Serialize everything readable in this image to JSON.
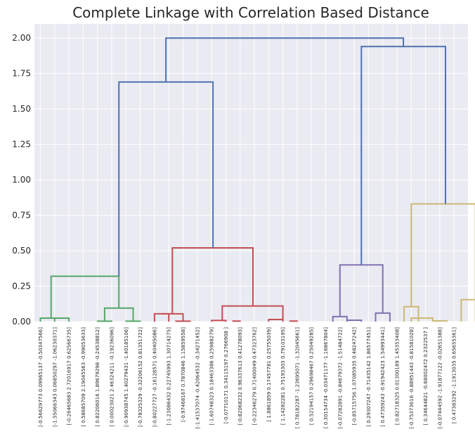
{
  "chart_data": {
    "type": "dendrogram",
    "title": "Complete Linkage with Correlation Based Distance",
    "xlabel": "",
    "ylabel": "",
    "ylim": [
      0,
      2.1
    ],
    "y_ticks": [
      "0.00",
      "0.25",
      "0.50",
      "0.75",
      "1.00",
      "1.25",
      "1.50",
      "1.75",
      "2.00"
    ],
    "grid": true,
    "leaves": [
      "[-0.56629773  0.09965137 -0.50347566]",
      "[-1.55066343  0.06850297 -1.06230371]",
      "[-0.26465683  2.72016917  0.62566735]",
      "[ 0.58685709  2.19045563 -0.99053633]",
      "[ 0.82206016  1.89679298 -0.24538812]",
      "[ 0.00023021  2.46324211 -0.19236096]",
      "[-0.90938745  1.40279431 -1.40185106]",
      "[-0.78325329 -0.32206152  0.81351722]",
      "[-0.80227727 -0.16128571  0.40405086]",
      "[-1.23086432  0.22745993  1.30714275]",
      "[-0.97468167  0.7870846   1.15859558]",
      "[-1.41537074 -0.42064532 -0.34271452]",
      "[-1.60748323  0.18463386  0.25988279]",
      "[-0.07710171  0.34115197  0.2766908 ]",
      "[-0.82068232  0.96337613  0.41278093]",
      "[-0.22346279  0.71400049  0.47323762]",
      "[ 1.8861859   0.17457781  0.25755039]",
      "[ 1.14282281  0.75193303  0.79103195]",
      "[ 0.78182287 -1.23695071 -1.32045661]",
      "[ 0.52194157  0.29698467  0.25049285]",
      "[ 0.30154734 -0.03471177 -1.16867804]",
      "[-0.07282891 -0.84679372 -1.51484722]",
      "[-0.85715756  1.07085935  0.48247242]",
      "[ 0.29307247 -0.71435142  1.86577451]",
      "[ 0.47359243 -0.91942423  1.54993441]",
      "[ 0.82718325  0.01300189  1.45353408]",
      "[-0.75373616 -0.88951443 -0.81581028]",
      "[ 0.34644821 -0.68002472  0.2322537 ]",
      "[-0.07444592 -1.91877122 -0.02651388]",
      "[ 0.47383292 -1.1913035   0.65655361]"
    ],
    "links": [
      {
        "x": [
          1,
          1,
          2,
          2
        ],
        "y": [
          0,
          0.025,
          0.025,
          0
        ],
        "color": "#55a868"
      },
      {
        "x": [
          4,
          4,
          5,
          5
        ],
        "y": [
          0,
          0.003,
          0.003,
          0
        ],
        "color": "#55a868"
      },
      {
        "x": [
          6,
          6,
          7,
          7
        ],
        "y": [
          0,
          0.003,
          0.003,
          0
        ],
        "color": "#55a868"
      },
      {
        "x": [
          4.5,
          4.5,
          6.5,
          6.5
        ],
        "y": [
          0.003,
          0.095,
          0.095,
          0.003
        ],
        "color": "#55a868"
      },
      {
        "x": [
          0,
          0,
          1.5,
          1.5
        ],
        "y": [
          0,
          0.025,
          0.025,
          0.025
        ],
        "color": "#55a868"
      },
      {
        "x": [
          0.75,
          0.75,
          5.5,
          5.5
        ],
        "y": [
          0.025,
          0.32,
          0.32,
          0.095
        ],
        "color": "#55a868"
      },
      {
        "x": [
          8,
          8,
          9,
          9
        ],
        "y": [
          0,
          0.055,
          0.055,
          0
        ],
        "color": "#c44e52"
      },
      {
        "x": [
          9.5,
          9.5,
          10.5,
          10.5
        ],
        "y": [
          0,
          0.003,
          0.003,
          0
        ],
        "color": "#c44e52"
      },
      {
        "x": [
          8.5,
          8.5,
          10,
          10
        ],
        "y": [
          0.055,
          0.055,
          0.055,
          0.003
        ],
        "color": "#c44e52"
      },
      {
        "x": [
          12,
          12,
          13,
          13
        ],
        "y": [
          0,
          0.008,
          0.008,
          0
        ],
        "color": "#c44e52"
      },
      {
        "x": [
          13.5,
          13.5,
          14,
          14
        ],
        "y": [
          0,
          0.004,
          0.004,
          0
        ],
        "color": "#c44e52"
      },
      {
        "x": [
          16,
          16,
          17,
          17
        ],
        "y": [
          0,
          0.015,
          0.015,
          0
        ],
        "color": "#c44e52"
      },
      {
        "x": [
          17.5,
          17.5,
          18,
          18
        ],
        "y": [
          0,
          0.004,
          0.004,
          0
        ],
        "color": "#c44e52"
      },
      {
        "x": [
          12.75,
          12.75,
          17,
          17
        ],
        "y": [
          0.008,
          0.11,
          0.11,
          0.015
        ],
        "color": "#c44e52"
      },
      {
        "x": [
          9.25,
          9.25,
          14.9,
          14.9
        ],
        "y": [
          0.055,
          0.52,
          0.52,
          0.11
        ],
        "color": "#c44e52"
      },
      {
        "x": [
          20.5,
          20.5,
          21.5,
          21.5
        ],
        "y": [
          0,
          0.035,
          0.035,
          0
        ],
        "color": "#8172b2"
      },
      {
        "x": [
          21.5,
          21.5,
          22.5,
          22.5
        ],
        "y": [
          0,
          0.01,
          0.01,
          0
        ],
        "color": "#8172b2"
      },
      {
        "x": [
          23.5,
          23.5,
          24.5,
          24.5
        ],
        "y": [
          0,
          0.06,
          0.06,
          0
        ],
        "color": "#8172b2"
      },
      {
        "x": [
          21.0,
          21.0,
          24.0,
          24.0
        ],
        "y": [
          0.035,
          0.4,
          0.4,
          0.06
        ],
        "color": "#8172b2"
      },
      {
        "x": [
          25.5,
          25.5,
          26.5,
          26.5
        ],
        "y": [
          0,
          0.105,
          0.105,
          0
        ],
        "color": "#ccb974"
      },
      {
        "x": [
          26,
          26,
          27.5,
          27.5
        ],
        "y": [
          0,
          0.025,
          0.025,
          0
        ],
        "color": "#ccb974"
      },
      {
        "x": [
          27.5,
          27.5,
          28.5,
          28.5
        ],
        "y": [
          0,
          0.005,
          0.005,
          0
        ],
        "color": "#ccb974"
      },
      {
        "x": [
          29.5,
          29.5,
          30.5,
          30.5
        ],
        "y": [
          0,
          0.155,
          0.155,
          0.02
        ],
        "color": "#ccb974"
      },
      {
        "x": [
          30.5,
          30.5,
          31.5,
          31.5
        ],
        "y": [
          0,
          0.02,
          0.02,
          0
        ],
        "color": "#ccb974"
      },
      {
        "x": [
          31.5,
          31.5,
          32.2,
          32.2
        ],
        "y": [
          0,
          0.005,
          0.005,
          0
        ],
        "color": "#ccb974"
      },
      {
        "x": [
          26,
          26,
          30.5,
          30.5
        ],
        "y": [
          0.105,
          0.83,
          0.83,
          0.155
        ],
        "color": "#ccb974"
      },
      {
        "x": [
          5.5,
          5.5,
          12.1,
          12.1
        ],
        "y": [
          0.32,
          1.69,
          1.69,
          0.52
        ],
        "color": "#4c72b0"
      },
      {
        "x": [
          22.5,
          22.5,
          28.4,
          28.4
        ],
        "y": [
          0.4,
          1.94,
          1.94,
          0.83
        ],
        "color": "#4c72b0"
      },
      {
        "x": [
          8.8,
          8.8,
          25.45,
          25.45
        ],
        "y": [
          1.69,
          2.0,
          2.0,
          1.94
        ],
        "color": "#4c72b0"
      }
    ]
  }
}
